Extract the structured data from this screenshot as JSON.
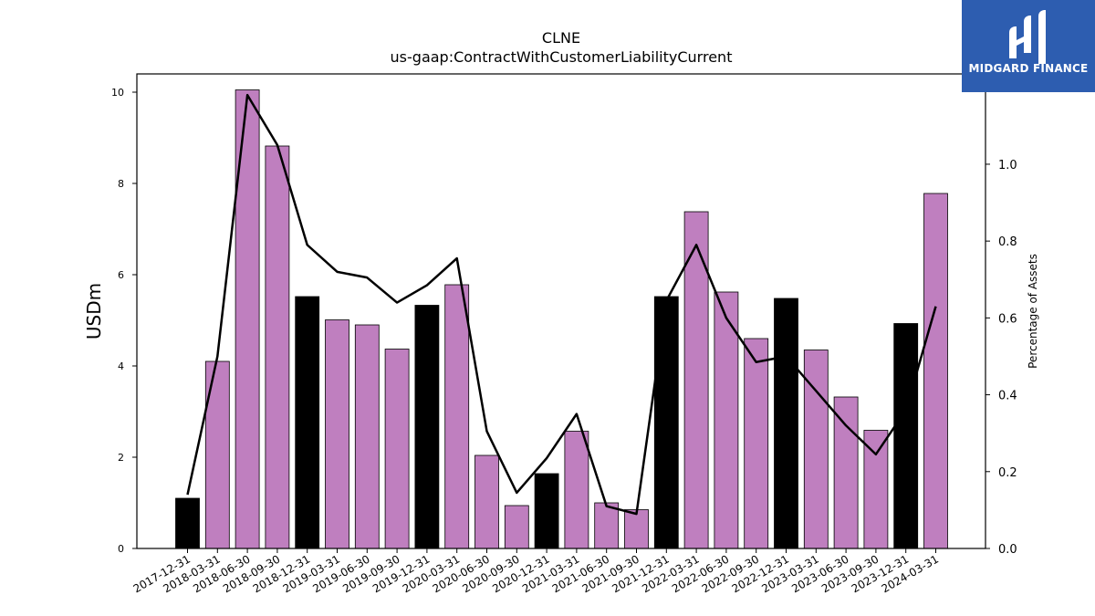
{
  "chart_data": {
    "type": "bar",
    "title": "CLNE",
    "subtitle": "us-gaap:ContractWithCustomerLiabilityCurrent",
    "ylabel": "USDm",
    "y2label": "Percentage of Assets",
    "ylim": [
      0,
      10.4
    ],
    "y2lim": [
      0,
      1.235
    ],
    "yticks": [
      0,
      2,
      4,
      6,
      8,
      10
    ],
    "y2ticks": [
      "0.0",
      "0.2",
      "0.4",
      "0.6",
      "0.8",
      "1.0"
    ],
    "categories": [
      "2017-12-31",
      "2018-03-31",
      "2018-06-30",
      "2018-09-30",
      "2018-12-31",
      "2019-03-31",
      "2019-06-30",
      "2019-09-30",
      "2019-12-31",
      "2020-03-31",
      "2020-06-30",
      "2020-09-30",
      "2020-12-31",
      "2021-03-31",
      "2021-06-30",
      "2021-09-30",
      "2021-12-31",
      "2022-03-31",
      "2022-06-30",
      "2022-09-30",
      "2022-12-31",
      "2023-03-31",
      "2023-06-30",
      "2023-09-30",
      "2023-12-31",
      "2024-03-31"
    ],
    "series": [
      {
        "type": "bar",
        "values": [
          1.1,
          4.1,
          10.05,
          8.82,
          5.52,
          5.01,
          4.9,
          4.37,
          5.33,
          5.78,
          2.04,
          0.94,
          1.64,
          2.57,
          1.0,
          0.85,
          5.52,
          7.38,
          5.62,
          4.6,
          5.48,
          4.35,
          3.32,
          2.59,
          4.93,
          7.78
        ],
        "colors": [
          "#000000",
          "#bf7fbf",
          "#bf7fbf",
          "#bf7fbf",
          "#000000",
          "#bf7fbf",
          "#bf7fbf",
          "#bf7fbf",
          "#000000",
          "#bf7fbf",
          "#bf7fbf",
          "#bf7fbf",
          "#000000",
          "#bf7fbf",
          "#bf7fbf",
          "#bf7fbf",
          "#000000",
          "#bf7fbf",
          "#bf7fbf",
          "#bf7fbf",
          "#000000",
          "#bf7fbf",
          "#bf7fbf",
          "#bf7fbf",
          "#000000",
          "#bf7fbf"
        ]
      },
      {
        "type": "line",
        "axis": "right",
        "color": "#000000",
        "values": [
          0.14,
          0.5,
          1.18,
          1.05,
          0.79,
          0.72,
          0.705,
          0.64,
          0.685,
          0.755,
          0.305,
          0.145,
          0.235,
          0.35,
          0.11,
          0.09,
          0.645,
          0.79,
          0.6,
          0.485,
          0.5,
          0.41,
          0.32,
          0.245,
          0.36,
          0.63
        ]
      }
    ]
  },
  "logo": {
    "text": "MIDGARD FINANCE"
  }
}
